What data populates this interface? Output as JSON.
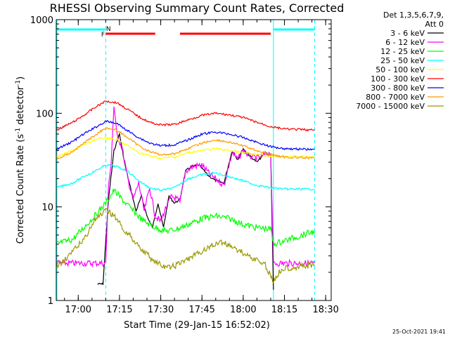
{
  "chart_data": {
    "type": "line",
    "title": "RHESSI Observing Summary Count Rates, Corrected",
    "xlabel": "Start Time (29-Jan-15 16:52:02)",
    "ylabel": "Corrected Count Rate (s",
    "ylabel_sup1": "-1",
    "ylabel_mid": " detector",
    "ylabel_sup2": "-1",
    "ylabel_end": ")",
    "yscale": "log",
    "xlim": [
      "16:52",
      "18:32"
    ],
    "ylim": [
      1,
      1000
    ],
    "x_ticks": [
      "17:00",
      "17:15",
      "17:30",
      "17:45",
      "18:00",
      "18:15",
      "18:30"
    ],
    "y_ticks": [
      {
        "value": 1,
        "label": "1"
      },
      {
        "value": 10,
        "label": "10"
      },
      {
        "value": 100,
        "label": "100"
      },
      {
        "value": 1000,
        "label": "1000"
      }
    ],
    "legend_header": "Det 1,3,5,6,7,9,",
    "legend_header2": "Att 0",
    "legend_placement": "right",
    "night_intervals": [
      [
        "16:52",
        "17:10"
      ],
      [
        "18:11",
        "18:26"
      ]
    ],
    "flare_intervals": [
      [
        "17:10",
        "17:28"
      ],
      [
        "17:37",
        "18:10"
      ]
    ],
    "markers": [
      {
        "time": "17:09",
        "label": "F",
        "color": "#ff0000"
      },
      {
        "time": "17:11",
        "label": "N",
        "color": "#00ffff"
      }
    ],
    "night_color": "#00ffff",
    "flare_color": "#ff0000",
    "timestamp": "25-Oct-2021 19:41",
    "series": [
      {
        "name": "3 - 6 keV",
        "color": "#000000",
        "points": [
          [
            "17:07",
            1.5
          ],
          [
            "17:09",
            1.5
          ],
          [
            "17:11",
            12
          ],
          [
            "17:13",
            40
          ],
          [
            "17:15",
            60
          ],
          [
            "17:17",
            28
          ],
          [
            "17:19",
            16
          ],
          [
            "17:21",
            9
          ],
          [
            "17:23",
            13
          ],
          [
            "17:25",
            8
          ],
          [
            "17:27",
            6
          ],
          [
            "17:29",
            11
          ],
          [
            "17:31",
            6
          ],
          [
            "17:33",
            13
          ],
          [
            "17:35",
            11
          ],
          [
            "17:37",
            12
          ],
          [
            "17:39",
            24
          ],
          [
            "17:41",
            27
          ],
          [
            "17:44",
            28
          ],
          [
            "17:47",
            22
          ],
          [
            "17:50",
            19
          ],
          [
            "17:53",
            18
          ],
          [
            "17:56",
            40
          ],
          [
            "17:58",
            32
          ],
          [
            "18:00",
            42
          ],
          [
            "18:02",
            36
          ],
          [
            "18:05",
            30
          ],
          [
            "18:08",
            38
          ],
          [
            "18:10",
            36
          ],
          [
            "18:11",
            1.3
          ]
        ]
      },
      {
        "name": "6 - 12 keV",
        "color": "#ff00ff",
        "points": [
          [
            "16:52",
            2.5
          ],
          [
            "17:10",
            2.5
          ],
          [
            "17:11",
            16
          ],
          [
            "17:12",
            32
          ],
          [
            "17:13",
            120
          ],
          [
            "17:14",
            60
          ],
          [
            "17:16",
            42
          ],
          [
            "17:18",
            20
          ],
          [
            "17:20",
            12
          ],
          [
            "17:22",
            18
          ],
          [
            "17:24",
            9
          ],
          [
            "17:26",
            16
          ],
          [
            "17:28",
            8
          ],
          [
            "17:30",
            7
          ],
          [
            "17:32",
            10
          ],
          [
            "17:34",
            13
          ],
          [
            "17:36",
            12
          ],
          [
            "17:37",
            11
          ],
          [
            "17:39",
            24
          ],
          [
            "17:42",
            27
          ],
          [
            "17:45",
            28
          ],
          [
            "17:48",
            22
          ],
          [
            "17:51",
            19
          ],
          [
            "17:53",
            17
          ],
          [
            "17:56",
            38
          ],
          [
            "17:58",
            32
          ],
          [
            "18:00",
            40
          ],
          [
            "18:02",
            35
          ],
          [
            "18:05",
            33
          ],
          [
            "18:08",
            36
          ],
          [
            "18:10",
            38
          ],
          [
            "18:11",
            2.5
          ],
          [
            "18:26",
            2.5
          ]
        ]
      },
      {
        "name": "12 - 25 keV",
        "color": "#00ff00",
        "points": [
          [
            "16:52",
            4
          ],
          [
            "16:58",
            4.5
          ],
          [
            "17:02",
            6
          ],
          [
            "17:06",
            8
          ],
          [
            "17:10",
            11
          ],
          [
            "17:13",
            15
          ],
          [
            "17:16",
            12
          ],
          [
            "17:20",
            9
          ],
          [
            "17:24",
            7
          ],
          [
            "17:28",
            6
          ],
          [
            "17:32",
            5.5
          ],
          [
            "17:36",
            5.8
          ],
          [
            "17:40",
            6.5
          ],
          [
            "17:45",
            7.5
          ],
          [
            "17:50",
            8
          ],
          [
            "17:55",
            7.5
          ],
          [
            "18:00",
            6.5
          ],
          [
            "18:05",
            6
          ],
          [
            "18:10",
            5.8
          ],
          [
            "18:11",
            4
          ],
          [
            "18:26",
            5.5
          ]
        ]
      },
      {
        "name": "25 - 50 keV",
        "color": "#00ffff",
        "points": [
          [
            "16:52",
            16
          ],
          [
            "16:58",
            18
          ],
          [
            "17:02",
            21
          ],
          [
            "17:06",
            24
          ],
          [
            "17:10",
            28
          ],
          [
            "17:14",
            27
          ],
          [
            "17:18",
            24
          ],
          [
            "17:22",
            19
          ],
          [
            "17:26",
            16
          ],
          [
            "17:30",
            15
          ],
          [
            "17:35",
            16
          ],
          [
            "17:40",
            20
          ],
          [
            "17:45",
            22
          ],
          [
            "17:50",
            23
          ],
          [
            "17:55",
            21
          ],
          [
            "18:00",
            19
          ],
          [
            "18:05",
            17
          ],
          [
            "18:10",
            16
          ],
          [
            "18:15",
            15.5
          ],
          [
            "18:26",
            15.5
          ]
        ]
      },
      {
        "name": "50 - 100 keV",
        "color": "#ffff00",
        "points": [
          [
            "16:52",
            34
          ],
          [
            "16:58",
            40
          ],
          [
            "17:02",
            46
          ],
          [
            "17:06",
            52
          ],
          [
            "17:10",
            55
          ],
          [
            "17:14",
            52
          ],
          [
            "17:18",
            45
          ],
          [
            "17:22",
            38
          ],
          [
            "17:26",
            35
          ],
          [
            "17:30",
            33
          ],
          [
            "17:35",
            34
          ],
          [
            "17:40",
            38
          ],
          [
            "17:45",
            40
          ],
          [
            "17:50",
            42
          ],
          [
            "17:55",
            40
          ],
          [
            "18:00",
            38
          ],
          [
            "18:05",
            36
          ],
          [
            "18:10",
            35
          ],
          [
            "18:15",
            35
          ],
          [
            "18:26",
            34
          ]
        ]
      },
      {
        "name": "100 - 300 keV",
        "color": "#ff0000",
        "points": [
          [
            "16:52",
            66
          ],
          [
            "16:58",
            80
          ],
          [
            "17:02",
            95
          ],
          [
            "17:06",
            115
          ],
          [
            "17:10",
            135
          ],
          [
            "17:14",
            130
          ],
          [
            "17:18",
            110
          ],
          [
            "17:22",
            92
          ],
          [
            "17:26",
            80
          ],
          [
            "17:30",
            75
          ],
          [
            "17:35",
            76
          ],
          [
            "17:40",
            85
          ],
          [
            "17:45",
            95
          ],
          [
            "17:50",
            100
          ],
          [
            "17:55",
            96
          ],
          [
            "18:00",
            90
          ],
          [
            "18:05",
            80
          ],
          [
            "18:10",
            72
          ],
          [
            "18:15",
            68
          ],
          [
            "18:26",
            66
          ]
        ]
      },
      {
        "name": "300 - 800 keV",
        "color": "#0000ff",
        "points": [
          [
            "16:52",
            41
          ],
          [
            "16:58",
            50
          ],
          [
            "17:02",
            60
          ],
          [
            "17:06",
            70
          ],
          [
            "17:10",
            82
          ],
          [
            "17:14",
            78
          ],
          [
            "17:18",
            65
          ],
          [
            "17:22",
            55
          ],
          [
            "17:26",
            48
          ],
          [
            "17:30",
            45
          ],
          [
            "17:35",
            46
          ],
          [
            "17:40",
            52
          ],
          [
            "17:45",
            60
          ],
          [
            "17:50",
            63
          ],
          [
            "17:55",
            60
          ],
          [
            "18:00",
            55
          ],
          [
            "18:05",
            49
          ],
          [
            "18:10",
            44
          ],
          [
            "18:15",
            42
          ],
          [
            "18:26",
            41
          ]
        ]
      },
      {
        "name": "800 - 7000 keV",
        "color": "#ff9900",
        "points": [
          [
            "16:52",
            32
          ],
          [
            "16:58",
            39
          ],
          [
            "17:02",
            48
          ],
          [
            "17:06",
            58
          ],
          [
            "17:10",
            70
          ],
          [
            "17:14",
            66
          ],
          [
            "17:18",
            55
          ],
          [
            "17:22",
            45
          ],
          [
            "17:26",
            39
          ],
          [
            "17:30",
            36
          ],
          [
            "17:35",
            37
          ],
          [
            "17:40",
            42
          ],
          [
            "17:45",
            48
          ],
          [
            "17:50",
            52
          ],
          [
            "17:55",
            49
          ],
          [
            "18:00",
            45
          ],
          [
            "18:05",
            40
          ],
          [
            "18:10",
            36
          ],
          [
            "18:15",
            34
          ],
          [
            "18:26",
            33
          ]
        ]
      },
      {
        "name": "7000 - 15000 keV",
        "color": "#999900",
        "points": [
          [
            "16:52",
            2.3
          ],
          [
            "16:58",
            3.3
          ],
          [
            "17:02",
            4.5
          ],
          [
            "17:06",
            7.2
          ],
          [
            "17:10",
            9
          ],
          [
            "17:13",
            8.2
          ],
          [
            "17:16",
            6
          ],
          [
            "17:20",
            4.5
          ],
          [
            "17:24",
            3.3
          ],
          [
            "17:28",
            2.6
          ],
          [
            "17:32",
            2.2
          ],
          [
            "17:36",
            2.4
          ],
          [
            "17:40",
            2.8
          ],
          [
            "17:44",
            3.2
          ],
          [
            "17:48",
            3.8
          ],
          [
            "17:52",
            4.2
          ],
          [
            "17:56",
            3.8
          ],
          [
            "18:00",
            3.2
          ],
          [
            "18:04",
            2.8
          ],
          [
            "18:08",
            2.4
          ],
          [
            "18:11",
            1.6
          ],
          [
            "18:14",
            2.2
          ],
          [
            "18:26",
            2.4
          ]
        ]
      }
    ]
  }
}
